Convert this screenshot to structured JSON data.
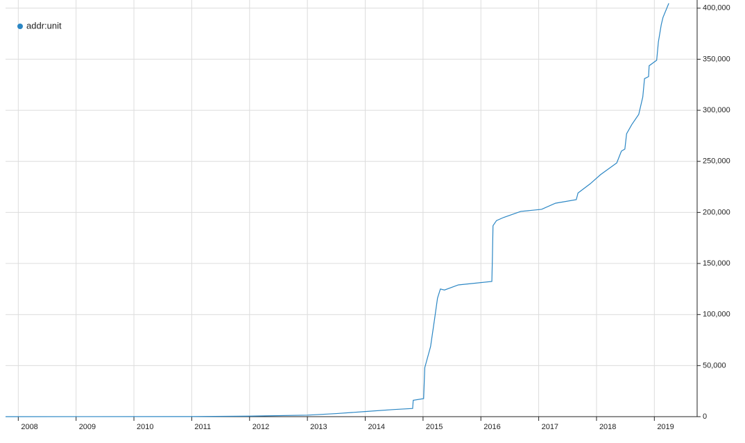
{
  "chart_data": {
    "type": "line",
    "x_axis_position": "bottom",
    "y_axis_position": "right",
    "grid": true,
    "legend": "top-left",
    "xlim": [
      2007.78,
      2019.74
    ],
    "xticks": [
      2008,
      2009,
      2010,
      2011,
      2012,
      2013,
      2014,
      2015,
      2016,
      2017,
      2018,
      2019
    ],
    "ylim": [
      0,
      408000
    ],
    "yticks": [
      0,
      {
        "value": 50000,
        "label": "50,000"
      },
      {
        "value": 100000,
        "label": "100,000"
      },
      {
        "value": 150000,
        "label": "150,000"
      },
      {
        "value": 200000,
        "label": "200,000"
      },
      {
        "value": 250000,
        "label": "250,000"
      },
      {
        "value": 300000,
        "label": "300,000"
      },
      {
        "value": 350000,
        "label": "350,000"
      },
      {
        "value": 400000,
        "label": "400,000"
      }
    ],
    "series": [
      {
        "name": "addr:unit",
        "color": "#2a86c4",
        "x": [
          2007.78,
          2011.0,
          2012.0,
          2013.0,
          2013.5,
          2014.0,
          2014.5,
          2014.82,
          2014.83,
          2015.01,
          2015.03,
          2015.13,
          2015.2,
          2015.25,
          2015.3,
          2015.37,
          2015.61,
          2016.19,
          2016.2,
          2016.21,
          2016.27,
          2016.39,
          2016.69,
          2017.05,
          2017.29,
          2017.65,
          2017.68,
          2017.89,
          2018.07,
          2018.35,
          2018.43,
          2018.49,
          2018.52,
          2018.61,
          2018.73,
          2018.8,
          2018.83,
          2018.9,
          2018.91,
          2019.04,
          2019.07,
          2019.12,
          2019.15,
          2019.25
        ],
        "values": [
          0,
          100,
          500,
          1500,
          3000,
          5000,
          7000,
          8000,
          16000,
          17700,
          48000,
          68600,
          95800,
          116000,
          125000,
          124000,
          129000,
          132400,
          157000,
          187000,
          192000,
          195000,
          201000,
          203000,
          209000,
          212500,
          219000,
          228000,
          237000,
          248500,
          260000,
          262000,
          277000,
          286000,
          296000,
          313000,
          331000,
          333000,
          343600,
          349000,
          367000,
          384000,
          391000,
          404800
        ]
      }
    ]
  }
}
